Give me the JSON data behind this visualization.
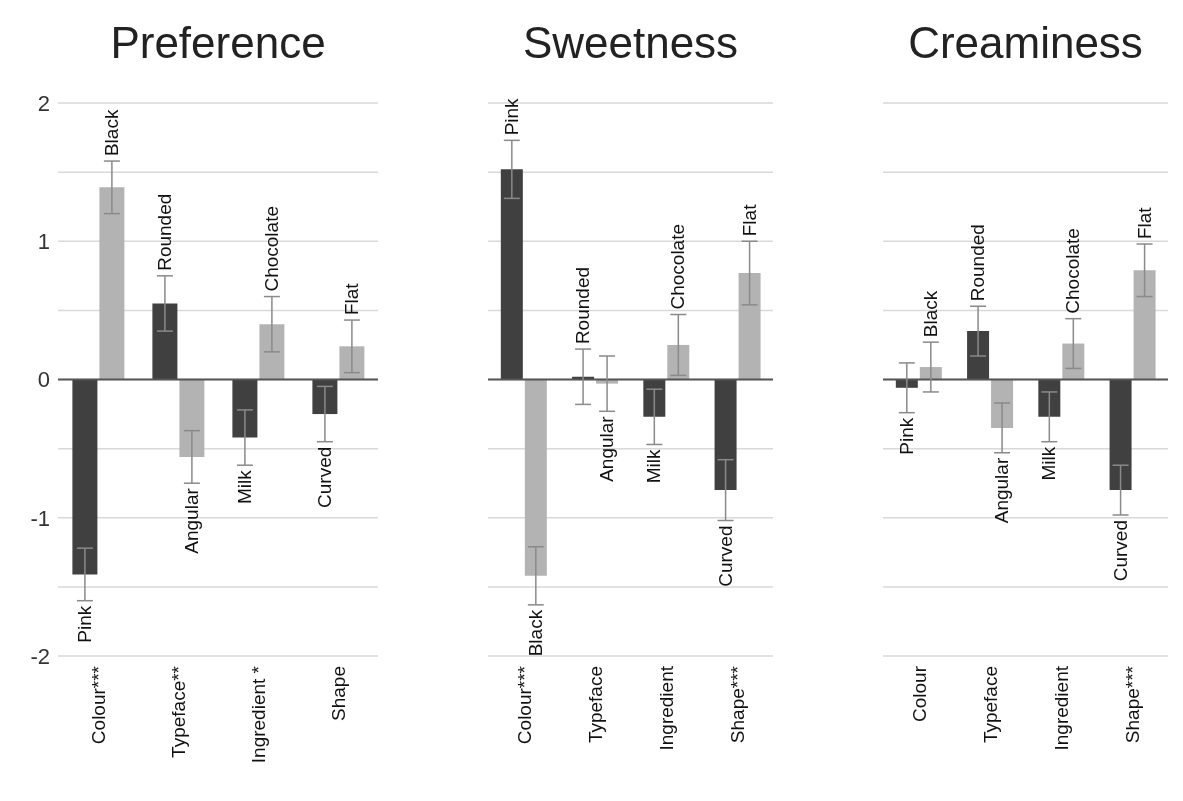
{
  "chart_data": [
    {
      "type": "bar",
      "title": "Preference",
      "categories": [
        "Colour***",
        "Typeface**",
        "Ingredient *",
        "Shape"
      ],
      "ylim": [
        -2,
        2
      ],
      "yticks": [
        -2,
        {
          "value": -1.5,
          "label": null
        },
        -1,
        {
          "value": -0.5,
          "label": null
        },
        0,
        {
          "value": 0.5,
          "label": null
        },
        1,
        {
          "value": 1.5,
          "label": null
        },
        2
      ],
      "grid": "y",
      "series": [
        {
          "color": "#404040",
          "values": [
            -1.41,
            0.55,
            -0.42,
            -0.25
          ],
          "errors": [
            0.19,
            0.2,
            0.2,
            0.2
          ],
          "value_labels": [
            "Pink",
            "Rounded",
            "Milk",
            "Curved"
          ]
        },
        {
          "color": "#b3b3b3",
          "values": [
            1.39,
            -0.56,
            0.4,
            0.24
          ],
          "errors": [
            0.19,
            0.19,
            0.2,
            0.19
          ],
          "value_labels": [
            "Black",
            "Angular",
            "Chocolate",
            "Flat"
          ]
        }
      ]
    },
    {
      "type": "bar",
      "title": "Sweetness",
      "categories": [
        "Colour***",
        "Typeface",
        "Ingredient",
        "Shape***"
      ],
      "ylim": [
        -2,
        2
      ],
      "yticks": [
        -2,
        {
          "value": -1.5,
          "label": null
        },
        -1,
        {
          "value": -0.5,
          "label": null
        },
        0,
        {
          "value": 0.5,
          "label": null
        },
        1,
        {
          "value": 1.5,
          "label": null
        },
        2
      ],
      "grid": "y",
      "tick_labels": "x",
      "series": [
        {
          "color": "#404040",
          "values": [
            1.52,
            0.02,
            -0.27,
            -0.8
          ],
          "errors": [
            0.21,
            0.2,
            0.2,
            0.22
          ],
          "value_labels": [
            "Pink",
            "Rounded",
            "Milk",
            "Curved"
          ]
        },
        {
          "color": "#b3b3b3",
          "values": [
            -1.42,
            -0.03,
            0.25,
            0.77
          ],
          "errors": [
            0.21,
            0.2,
            0.22,
            0.23
          ],
          "value_labels": [
            "Black",
            "Angular",
            "Chocolate",
            "Flat"
          ]
        }
      ]
    },
    {
      "type": "bar",
      "title": "Creaminess",
      "categories": [
        "Colour",
        "Typeface",
        "Ingredient",
        "Shape***"
      ],
      "ylim": [
        -2,
        2
      ],
      "yticks": [
        -2,
        {
          "value": -1.5,
          "label": null
        },
        -1,
        {
          "value": -0.5,
          "label": null
        },
        0,
        {
          "value": 0.5,
          "label": null
        },
        1,
        {
          "value": 1.5,
          "label": null
        },
        2
      ],
      "grid": "y",
      "tick_labels": "x",
      "series": [
        {
          "color": "#404040",
          "values": [
            -0.06,
            0.35,
            -0.27,
            -0.8
          ],
          "errors": [
            0.18,
            0.18,
            0.18,
            0.18
          ],
          "value_labels": [
            "Pink",
            "Rounded",
            "Milk",
            "Curved"
          ]
        },
        {
          "color": "#b3b3b3",
          "values": [
            0.09,
            -0.35,
            0.26,
            0.79
          ],
          "errors": [
            0.18,
            0.18,
            0.18,
            0.19
          ],
          "value_labels": [
            "Black",
            "Angular",
            "Chocolate",
            "Flat"
          ]
        }
      ]
    }
  ]
}
